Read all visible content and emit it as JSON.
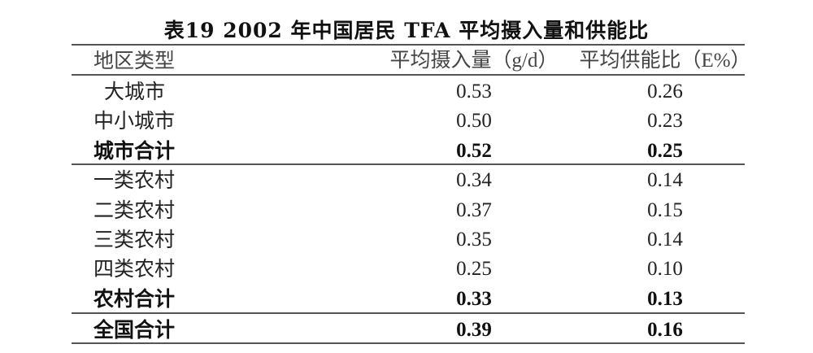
{
  "title": "表19  2002 年中国居民 TFA 平均摄入量和供能比",
  "headers": [
    "地区类型",
    "平均摄入量（g/d）",
    "平均供能比（E%）"
  ],
  "rows": [
    {
      "region": "大城市",
      "intake": "0.53",
      "energy": "0.26",
      "bold": false
    },
    {
      "region": "中小城市",
      "intake": "0.50",
      "energy": "0.23",
      "bold": false
    },
    {
      "region": "城市合计",
      "intake": "0.52",
      "energy": "0.25",
      "bold": true
    },
    {
      "region": "一类农村",
      "intake": "0.34",
      "energy": "0.14",
      "bold": false
    },
    {
      "region": "二类农村",
      "intake": "0.37",
      "energy": "0.15",
      "bold": false
    },
    {
      "region": "三类农村",
      "intake": "0.35",
      "energy": "0.14",
      "bold": false
    },
    {
      "region": "四类农村",
      "intake": "0.25",
      "energy": "0.10",
      "bold": false
    },
    {
      "region": "农村合计",
      "intake": "0.33",
      "energy": "0.13",
      "bold": true
    },
    {
      "region": "全国合计",
      "intake": "0.39",
      "energy": "0.16",
      "bold": true
    }
  ]
}
